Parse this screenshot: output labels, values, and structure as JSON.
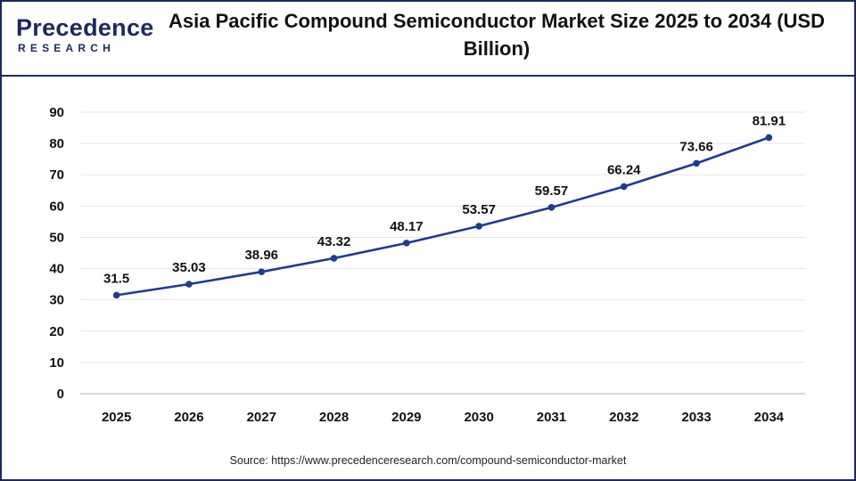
{
  "logo": {
    "word": "Precedence",
    "sub": "RESEARCH"
  },
  "colors": {
    "line": "#1f3b8f",
    "marker": "#1f3b8f",
    "brand": "#1b2a5c",
    "grid": "#e6e6e6"
  },
  "source": "Source: https://www.precedenceresearch.com/compound-semiconductor-market",
  "chart_data": {
    "type": "line",
    "title": "Asia Pacific Compound Semiconductor Market Size 2025 to 2034 (USD Billion)",
    "xlabel": "",
    "ylabel": "",
    "categories": [
      "2025",
      "2026",
      "2027",
      "2028",
      "2029",
      "2030",
      "2031",
      "2032",
      "2033",
      "2034"
    ],
    "series": [
      {
        "values": [
          31.5,
          35.03,
          38.96,
          43.32,
          48.17,
          53.57,
          59.57,
          66.24,
          73.66,
          81.91
        ]
      }
    ],
    "data_labels": [
      "31.5",
      "35.03",
      "38.96",
      "43.32",
      "48.17",
      "53.57",
      "59.57",
      "66.24",
      "73.66",
      "81.91"
    ],
    "y_ticks": [
      "0",
      "10",
      "20",
      "30",
      "40",
      "50",
      "60",
      "70",
      "80",
      "90"
    ],
    "ylim": [
      0,
      90
    ],
    "grid": true,
    "legend": "none"
  }
}
